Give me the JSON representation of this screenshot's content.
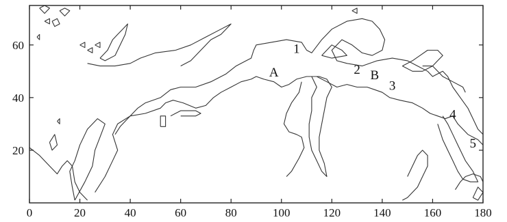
{
  "chart_data": {
    "type": "contour",
    "xlim": [
      0,
      180
    ],
    "ylim": [
      0,
      75
    ],
    "x_ticks": [
      0,
      20,
      40,
      60,
      80,
      100,
      120,
      140,
      160,
      180
    ],
    "y_ticks": [
      20,
      40,
      60
    ],
    "x_tick_labels": [
      "0",
      "20",
      "40",
      "60",
      "80",
      "100",
      "120",
      "140",
      "160",
      "180"
    ],
    "y_tick_labels": [
      "20",
      "40",
      "60"
    ],
    "grid": false,
    "annotations": [
      {
        "text": "A",
        "x": 97,
        "y": 48
      },
      {
        "text": "1",
        "x": 106,
        "y": 57
      },
      {
        "text": "2",
        "x": 130,
        "y": 49
      },
      {
        "text": "B",
        "x": 137,
        "y": 47
      },
      {
        "text": "3",
        "x": 144,
        "y": 43
      },
      {
        "text": "4",
        "x": 168,
        "y": 32
      },
      {
        "text": "5",
        "x": 176,
        "y": 21
      }
    ],
    "contours": [
      [
        [
          0,
          21
        ],
        [
          4,
          18
        ],
        [
          8,
          14
        ],
        [
          11,
          11
        ],
        [
          13,
          14
        ],
        [
          15,
          16
        ],
        [
          17,
          14
        ],
        [
          18,
          8
        ],
        [
          20,
          4
        ],
        [
          22,
          2
        ],
        [
          23,
          1
        ]
      ],
      [
        [
          18,
          1
        ],
        [
          22,
          8
        ],
        [
          25,
          14
        ],
        [
          26,
          20
        ],
        [
          28,
          25
        ],
        [
          30,
          30
        ],
        [
          27,
          32
        ],
        [
          23,
          28
        ],
        [
          20,
          22
        ],
        [
          18,
          16
        ],
        [
          16,
          12
        ],
        [
          17,
          6
        ],
        [
          18,
          1
        ]
      ],
      [
        [
          26,
          4
        ],
        [
          30,
          10
        ],
        [
          33,
          16
        ],
        [
          35,
          20
        ],
        [
          33,
          26
        ],
        [
          35,
          30
        ],
        [
          40,
          33
        ],
        [
          46,
          34
        ],
        [
          52,
          36
        ],
        [
          54,
          38
        ],
        [
          57,
          39
        ],
        [
          61,
          38
        ],
        [
          66,
          36
        ],
        [
          70,
          37
        ],
        [
          73,
          40
        ],
        [
          76,
          42
        ],
        [
          80,
          44
        ],
        [
          84,
          46
        ],
        [
          88,
          47
        ],
        [
          90,
          48
        ],
        [
          93,
          47
        ],
        [
          97,
          46
        ],
        [
          100,
          44
        ],
        [
          103,
          45
        ],
        [
          106,
          47
        ],
        [
          110,
          48
        ],
        [
          114,
          48
        ],
        [
          118,
          46
        ],
        [
          122,
          44
        ],
        [
          126,
          45
        ],
        [
          130,
          44
        ],
        [
          134,
          44
        ],
        [
          137,
          43
        ],
        [
          140,
          42
        ],
        [
          143,
          40
        ],
        [
          147,
          39
        ],
        [
          152,
          38
        ],
        [
          156,
          36
        ],
        [
          159,
          34
        ],
        [
          162,
          33
        ],
        [
          165,
          32
        ],
        [
          168,
          33
        ],
        [
          170,
          30
        ],
        [
          172,
          28
        ],
        [
          174,
          26
        ],
        [
          178,
          24
        ],
        [
          180,
          22
        ]
      ],
      [
        [
          60,
          33
        ],
        [
          66,
          33
        ],
        [
          68,
          34
        ],
        [
          66,
          35
        ],
        [
          60,
          35
        ],
        [
          56,
          33
        ]
      ],
      [
        [
          52,
          29
        ],
        [
          54,
          29
        ],
        [
          54,
          33
        ],
        [
          52,
          33
        ],
        [
          52,
          29
        ]
      ],
      [
        [
          34,
          26
        ],
        [
          36,
          29
        ],
        [
          40,
          33
        ],
        [
          43,
          36
        ],
        [
          46,
          38
        ],
        [
          52,
          40
        ],
        [
          56,
          43
        ],
        [
          60,
          44
        ],
        [
          66,
          44
        ],
        [
          72,
          46
        ],
        [
          78,
          49
        ],
        [
          82,
          52
        ],
        [
          86,
          54
        ],
        [
          88,
          55
        ],
        [
          89,
          58
        ],
        [
          90,
          60
        ],
        [
          96,
          61
        ],
        [
          102,
          62
        ],
        [
          108,
          61
        ],
        [
          110,
          58
        ],
        [
          112,
          57
        ],
        [
          116,
          62
        ],
        [
          120,
          66
        ],
        [
          126,
          69
        ],
        [
          132,
          70
        ],
        [
          136,
          69
        ],
        [
          139,
          66
        ],
        [
          141,
          62
        ],
        [
          140,
          58
        ],
        [
          136,
          56
        ],
        [
          132,
          57
        ],
        [
          128,
          60
        ],
        [
          124,
          62
        ],
        [
          122,
          60
        ],
        [
          120,
          58
        ],
        [
          122,
          54
        ],
        [
          126,
          53
        ],
        [
          132,
          52
        ],
        [
          138,
          54
        ],
        [
          144,
          55
        ],
        [
          150,
          54
        ],
        [
          154,
          52
        ],
        [
          158,
          50
        ],
        [
          160,
          48
        ],
        [
          164,
          50
        ],
        [
          166,
          48
        ],
        [
          168,
          44
        ],
        [
          171,
          40
        ],
        [
          174,
          36
        ],
        [
          176,
          32
        ],
        [
          178,
          28
        ],
        [
          180,
          26
        ]
      ],
      [
        [
          116,
          56
        ],
        [
          120,
          60
        ],
        [
          124,
          58
        ],
        [
          126,
          56
        ],
        [
          120,
          55
        ],
        [
          116,
          56
        ]
      ],
      [
        [
          112,
          48
        ],
        [
          114,
          44
        ],
        [
          112,
          40
        ],
        [
          112,
          35
        ],
        [
          111,
          30
        ],
        [
          111,
          25
        ],
        [
          112,
          20
        ],
        [
          114,
          16
        ],
        [
          116,
          12
        ],
        [
          118,
          10
        ],
        [
          117,
          15
        ],
        [
          115,
          20
        ],
        [
          115,
          25
        ],
        [
          116,
          30
        ],
        [
          117,
          35
        ],
        [
          118,
          40
        ],
        [
          120,
          44
        ],
        [
          118,
          47
        ],
        [
          115,
          48
        ],
        [
          112,
          48
        ]
      ],
      [
        [
          108,
          46
        ],
        [
          107,
          42
        ],
        [
          104,
          38
        ],
        [
          102,
          34
        ],
        [
          101,
          30
        ],
        [
          103,
          27
        ],
        [
          106,
          26
        ],
        [
          108,
          25
        ],
        [
          109,
          21
        ],
        [
          107,
          17
        ],
        [
          104,
          12
        ],
        [
          102,
          10
        ]
      ],
      [
        [
          60,
          52
        ],
        [
          64,
          54
        ],
        [
          68,
          58
        ],
        [
          72,
          62
        ],
        [
          76,
          64
        ],
        [
          78,
          66
        ],
        [
          80,
          68
        ],
        [
          76,
          66
        ],
        [
          70,
          63
        ],
        [
          64,
          60
        ],
        [
          58,
          58
        ],
        [
          50,
          57
        ],
        [
          44,
          55
        ],
        [
          40,
          53
        ],
        [
          34,
          52
        ],
        [
          28,
          52
        ],
        [
          23,
          53
        ]
      ],
      [
        [
          28,
          55
        ],
        [
          31,
          58
        ],
        [
          33,
          62
        ],
        [
          35,
          64
        ],
        [
          37,
          66
        ],
        [
          39,
          68
        ],
        [
          38,
          64
        ],
        [
          36,
          60
        ],
        [
          34,
          56
        ],
        [
          30,
          54
        ],
        [
          28,
          55
        ]
      ],
      [
        [
          156,
          52
        ],
        [
          160,
          52
        ],
        [
          162,
          50
        ],
        [
          164,
          48
        ],
        [
          168,
          46
        ],
        [
          172,
          44
        ],
        [
          173,
          42
        ]
      ],
      [
        [
          162,
          30
        ],
        [
          164,
          24
        ],
        [
          166,
          20
        ],
        [
          168,
          16
        ],
        [
          170,
          12
        ],
        [
          172,
          9
        ],
        [
          175,
          8
        ],
        [
          178,
          8
        ],
        [
          176,
          12
        ],
        [
          173,
          16
        ],
        [
          170,
          22
        ],
        [
          168,
          26
        ],
        [
          166,
          30
        ],
        [
          164,
          33
        ]
      ],
      [
        [
          169,
          5
        ],
        [
          171,
          8
        ],
        [
          173,
          10
        ],
        [
          176,
          11
        ],
        [
          179,
          10
        ],
        [
          180,
          8
        ]
      ],
      [
        [
          148,
          52
        ],
        [
          152,
          50
        ],
        [
          156,
          50
        ],
        [
          160,
          52
        ],
        [
          162,
          54
        ],
        [
          164,
          56
        ],
        [
          162,
          58
        ],
        [
          158,
          58
        ],
        [
          155,
          56
        ],
        [
          152,
          54
        ],
        [
          148,
          52
        ]
      ],
      [
        [
          150,
          10
        ],
        [
          152,
          14
        ],
        [
          154,
          18
        ],
        [
          156,
          20
        ],
        [
          158,
          18
        ],
        [
          158,
          14
        ],
        [
          156,
          10
        ],
        [
          154,
          6
        ],
        [
          152,
          4
        ],
        [
          150,
          2
        ],
        [
          148,
          1
        ]
      ],
      [
        [
          4,
          74
        ],
        [
          6,
          75
        ],
        [
          8,
          74
        ],
        [
          6,
          72
        ],
        [
          4,
          74
        ]
      ],
      [
        [
          12,
          73
        ],
        [
          14,
          74
        ],
        [
          16,
          73
        ],
        [
          14,
          71
        ],
        [
          12,
          73
        ]
      ],
      [
        [
          9,
          69
        ],
        [
          11,
          70
        ],
        [
          12,
          68
        ],
        [
          10,
          67
        ],
        [
          9,
          69
        ]
      ],
      [
        [
          6,
          69
        ],
        [
          8,
          70
        ],
        [
          8,
          68
        ],
        [
          6,
          69
        ]
      ],
      [
        [
          20,
          60
        ],
        [
          22,
          61
        ],
        [
          22,
          59
        ],
        [
          20,
          60
        ]
      ],
      [
        [
          23,
          58
        ],
        [
          25,
          59
        ],
        [
          25,
          57
        ],
        [
          23,
          58
        ]
      ],
      [
        [
          26,
          60
        ],
        [
          28,
          61
        ],
        [
          28,
          59
        ],
        [
          26,
          60
        ]
      ],
      [
        [
          3,
          63
        ],
        [
          4,
          64
        ],
        [
          4,
          62
        ],
        [
          3,
          63
        ]
      ],
      [
        [
          11,
          31
        ],
        [
          12,
          32
        ],
        [
          12,
          30
        ],
        [
          11,
          31
        ]
      ],
      [
        [
          128,
          73
        ],
        [
          130,
          74
        ],
        [
          130,
          72
        ],
        [
          128,
          73
        ]
      ],
      [
        [
          8,
          23
        ],
        [
          10,
          26
        ],
        [
          11,
          22
        ],
        [
          9,
          20
        ],
        [
          8,
          23
        ]
      ],
      [
        [
          176,
          2
        ],
        [
          178,
          6
        ],
        [
          180,
          4
        ],
        [
          178,
          1
        ],
        [
          176,
          2
        ]
      ]
    ]
  }
}
